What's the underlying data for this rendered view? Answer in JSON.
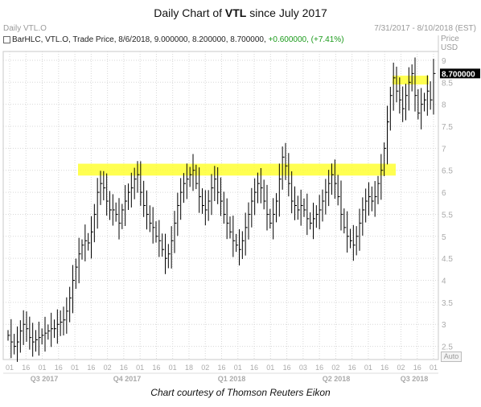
{
  "title_prefix": "Daily Chart of ",
  "title_ticker": "VTL",
  "title_suffix": " since July 2017",
  "topbar": {
    "left": "Daily VTL.O",
    "right": "7/31/2017 - 8/10/2018 (EST)"
  },
  "legend": {
    "text": "BarHLC, VTL.O, Trade Price, 8/6/2018, 9.000000, 8.200000, 8.700000,",
    "change": "+0.600000, (+7.41%)"
  },
  "price_axis": {
    "header1": "Price",
    "header2": "USD",
    "current_label": "8.700000"
  },
  "auto_label": "Auto",
  "caption": "Chart courtesy of Thomson Reuters Eikon",
  "colors": {
    "bars": "#000000",
    "highlight": "#ffff33",
    "grid": "#d7d7d7",
    "axis_text": "#aaaaaa",
    "change": "#1a9a1a"
  },
  "chart_data": {
    "type": "bar",
    "style": "HLC bars",
    "ylim": [
      2.2,
      9.2
    ],
    "y_ticks": [
      "2.5",
      "3",
      "3.5",
      "4",
      "4.5",
      "5",
      "5.5",
      "6",
      "6.5",
      "7",
      "7.5",
      "8",
      "8.5",
      "9"
    ],
    "x_day_ticks": [
      "01",
      "16",
      "01",
      "16",
      "01",
      "16",
      "02",
      "16",
      "01",
      "16",
      "01",
      "18",
      "02",
      "16",
      "01",
      "16",
      "01",
      "16",
      "03",
      "16",
      "02",
      "16",
      "01",
      "16",
      "02",
      "16",
      "01"
    ],
    "quarters": [
      "Q3 2017",
      "Q4 2017",
      "Q1 2018",
      "Q2 2018",
      "Q3 2018"
    ],
    "resistance_zones": [
      {
        "price_low": 6.38,
        "price_high": 6.65,
        "from": "Sep 2017",
        "to": "Jul 2018"
      },
      {
        "price_low": 8.45,
        "price_high": 8.65,
        "from": "Jul 2018",
        "to": "Aug 2018"
      }
    ],
    "closes": [
      2.75,
      2.6,
      2.5,
      2.6,
      2.85,
      3.0,
      2.9,
      2.7,
      2.6,
      2.65,
      2.7,
      2.75,
      2.8,
      2.85,
      2.9,
      2.9,
      3.0,
      3.05,
      3.1,
      3.3,
      3.6,
      4.0,
      4.3,
      4.6,
      4.8,
      4.9,
      4.85,
      5.1,
      5.5,
      6.0,
      6.2,
      6.1,
      5.8,
      5.6,
      5.6,
      5.5,
      5.3,
      5.6,
      5.8,
      6.0,
      6.1,
      6.3,
      6.4,
      6.0,
      5.7,
      5.5,
      5.3,
      5.2,
      5.0,
      4.9,
      4.7,
      4.5,
      4.6,
      4.9,
      5.3,
      5.7,
      6.0,
      6.2,
      6.3,
      6.4,
      6.5,
      6.2,
      5.9,
      5.7,
      5.6,
      5.8,
      6.1,
      6.3,
      6.0,
      5.8,
      5.5,
      5.3,
      5.1,
      4.9,
      4.8,
      4.7,
      4.9,
      5.2,
      5.5,
      5.8,
      6.0,
      6.2,
      6.1,
      5.8,
      5.5,
      5.3,
      5.5,
      5.8,
      6.3,
      6.8,
      6.6,
      6.2,
      5.8,
      5.7,
      5.6,
      5.7,
      5.6,
      5.4,
      5.3,
      5.4,
      5.5,
      5.6,
      5.8,
      6.0,
      6.2,
      6.4,
      6.2,
      5.9,
      5.5,
      5.2,
      5.0,
      4.9,
      4.8,
      5.0,
      5.3,
      5.6,
      5.8,
      5.9,
      5.8,
      5.9,
      6.2,
      6.5,
      7.0,
      7.6,
      8.2,
      8.6,
      8.3,
      8.1,
      7.9,
      8.2,
      8.5,
      8.7,
      8.2,
      7.8,
      8.0,
      8.1,
      8.3,
      8.1,
      8.7
    ]
  }
}
